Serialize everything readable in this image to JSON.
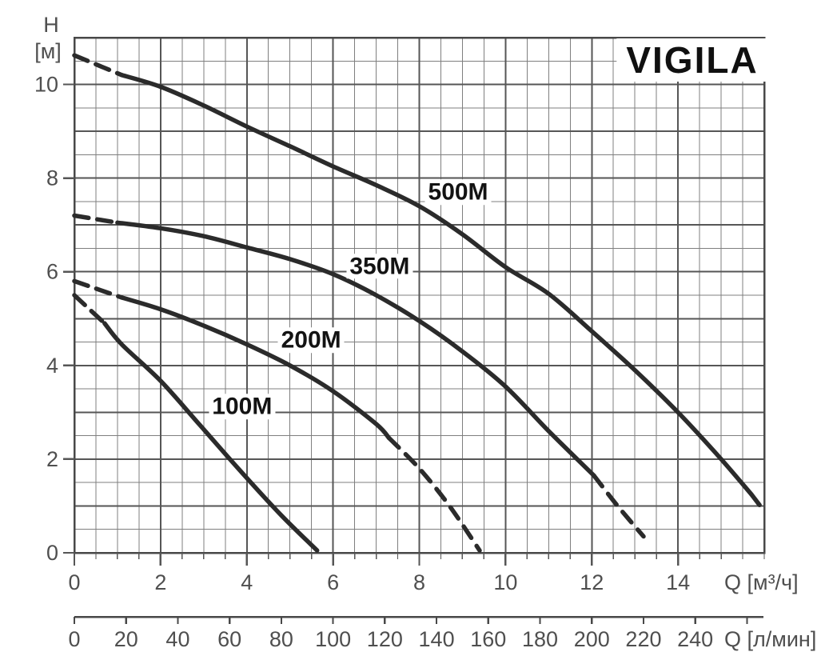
{
  "title": "VIGILA",
  "y_axis": {
    "name": "H",
    "unit": "[м]",
    "tick_labels": [
      0,
      2,
      4,
      6,
      8,
      10
    ]
  },
  "x_axis_primary": {
    "unit_label": "Q [м³/ч]",
    "tick_labels": [
      0,
      2,
      4,
      6,
      8,
      10,
      12,
      14
    ]
  },
  "x_axis_secondary": {
    "unit_label": "Q [л/мин]",
    "tick_labels": [
      0,
      20,
      40,
      60,
      80,
      100,
      120,
      140,
      160,
      180,
      200,
      220,
      240
    ]
  },
  "colors": {
    "curve": "#2b2b2b",
    "grid_minor": "#7f7f7f",
    "grid_major": "#565656",
    "border": "#484848",
    "tick_text": "#4f4f4f",
    "label_text": "#131313"
  },
  "chart_data": {
    "type": "line",
    "title": "VIGILA",
    "ylabel": "H [м]",
    "xlabel_primary": "Q [м³/ч]",
    "xlabel_secondary": "Q [л/мин]",
    "xlim": [
      0,
      16
    ],
    "ylim": [
      0,
      11
    ],
    "x_major_step": 2,
    "x_minor_step": 0.5,
    "y_major_step": 1,
    "y_minor_step": 0.5,
    "x_tick_labels": [
      0,
      2,
      4,
      6,
      8,
      10,
      12,
      14
    ],
    "y_tick_labels": [
      0,
      2,
      4,
      6,
      8,
      10
    ],
    "secondary_axis": {
      "unit": "л/мин",
      "tick_step": 20,
      "max_tick": 260,
      "labeled_max": 240,
      "lpm_per_m3h": 16.667
    },
    "grid": true,
    "legend": "inline-curve-labels",
    "series": [
      {
        "name": "100M",
        "label_pos": {
          "q": 3.89,
          "h": 3.12
        },
        "lead_dash": [
          [
            0,
            5.5
          ],
          [
            0.7,
            4.9
          ]
        ],
        "solid": [
          [
            0.7,
            4.9
          ],
          [
            1.1,
            4.45
          ],
          [
            2,
            3.67
          ],
          [
            2.9,
            2.74
          ],
          [
            3.8,
            1.8
          ],
          [
            4.8,
            0.8
          ],
          [
            5.63,
            0.05
          ]
        ],
        "tail_dash": []
      },
      {
        "name": "200M",
        "label_pos": {
          "q": 5.49,
          "h": 4.54
        },
        "lead_dash": [
          [
            0,
            5.8
          ],
          [
            1.1,
            5.45
          ]
        ],
        "solid": [
          [
            1.1,
            5.45
          ],
          [
            2,
            5.2
          ],
          [
            3,
            4.85
          ],
          [
            4,
            4.45
          ],
          [
            5,
            4.0
          ],
          [
            6,
            3.45
          ],
          [
            7,
            2.75
          ],
          [
            7.3,
            2.45
          ]
        ],
        "tail_dash": [
          [
            7.3,
            2.45
          ],
          [
            8,
            1.8
          ],
          [
            8.7,
            1.0
          ],
          [
            9.4,
            0.05
          ]
        ]
      },
      {
        "name": "350M",
        "label_pos": {
          "q": 7.08,
          "h": 6.12
        },
        "lead_dash": [
          [
            0,
            7.2
          ],
          [
            1.0,
            7.05
          ]
        ],
        "solid": [
          [
            1.0,
            7.05
          ],
          [
            2,
            6.93
          ],
          [
            3,
            6.76
          ],
          [
            4,
            6.52
          ],
          [
            5,
            6.27
          ],
          [
            6,
            5.95
          ],
          [
            7,
            5.5
          ],
          [
            8,
            4.95
          ],
          [
            9,
            4.3
          ],
          [
            10,
            3.55
          ],
          [
            11,
            2.6
          ],
          [
            12.05,
            1.65
          ]
        ],
        "tail_dash": [
          [
            12.05,
            1.65
          ],
          [
            12.6,
            1.0
          ],
          [
            13.2,
            0.35
          ]
        ]
      },
      {
        "name": "500M",
        "label_pos": {
          "q": 8.9,
          "h": 7.7
        },
        "lead_dash": [
          [
            0,
            10.62
          ],
          [
            1.1,
            10.2
          ]
        ],
        "solid": [
          [
            1.1,
            10.2
          ],
          [
            2,
            9.95
          ],
          [
            3,
            9.55
          ],
          [
            4,
            9.1
          ],
          [
            5,
            8.68
          ],
          [
            6,
            8.25
          ],
          [
            7,
            7.85
          ],
          [
            8,
            7.4
          ],
          [
            9,
            6.8
          ],
          [
            10,
            6.1
          ],
          [
            11,
            5.53
          ],
          [
            12,
            4.73
          ],
          [
            13,
            3.9
          ],
          [
            14,
            3.0
          ],
          [
            15,
            2.0
          ],
          [
            15.7,
            1.25
          ]
        ],
        "tail_dash": [
          [
            15.7,
            1.25
          ],
          [
            15.95,
            0.95
          ]
        ]
      }
    ]
  }
}
